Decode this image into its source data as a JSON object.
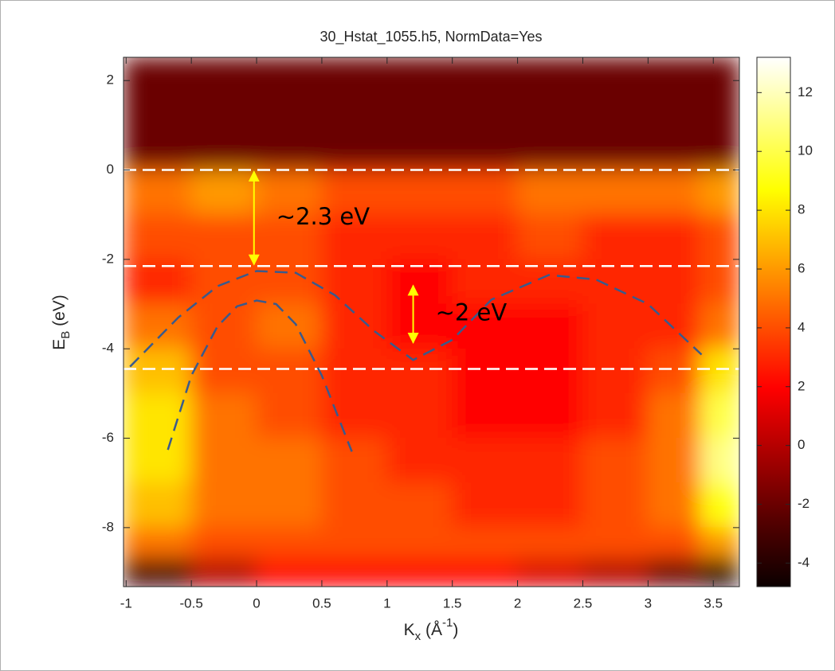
{
  "chart_data": {
    "type": "heatmap",
    "title": "30_Hstat_1055.h5, NormData=Yes",
    "xlabel": [
      "K",
      "x",
      " (Å",
      "-1",
      ")"
    ],
    "ylabel": [
      "E",
      "B",
      " (eV)"
    ],
    "xlim": [
      -1.02,
      3.7
    ],
    "ylim": [
      -9.32,
      2.52
    ],
    "xticks": [
      -1,
      -0.5,
      0,
      0.5,
      1,
      1.5,
      2,
      2.5,
      3,
      3.5
    ],
    "yticks": [
      2,
      0,
      -2,
      -4,
      -6,
      -8
    ],
    "xbins": [
      -1.02,
      -0.5,
      0,
      0.5,
      1,
      1.5,
      2,
      2.5,
      3,
      3.4,
      3.7
    ],
    "ybins": [
      2.52,
      1.26,
      0,
      -1,
      -2,
      -3,
      -4,
      -5,
      -6,
      -7,
      -8,
      -8.7,
      -9.32
    ],
    "z": [
      [
        -2,
        -2,
        -2,
        -2,
        -2,
        -2,
        -2,
        -2,
        -2,
        -2
      ],
      [
        -2,
        -2,
        -2,
        -2,
        -2,
        -2,
        -2,
        -2,
        -2,
        -2
      ],
      [
        5,
        6,
        5,
        4,
        4,
        4,
        5,
        5,
        5,
        6
      ],
      [
        4,
        4,
        4,
        3,
        3,
        3,
        4,
        3,
        3,
        4
      ],
      [
        3,
        4,
        4,
        3,
        2,
        3,
        3,
        3,
        3,
        4
      ],
      [
        5,
        4,
        5,
        3,
        2,
        2,
        2,
        3,
        3,
        5
      ],
      [
        7,
        4,
        4,
        3,
        3,
        2,
        2,
        3,
        4,
        8
      ],
      [
        8,
        5,
        4,
        3,
        3,
        2,
        2,
        3,
        5,
        10
      ],
      [
        8,
        5,
        5,
        4,
        3,
        3,
        3,
        4,
        5,
        11
      ],
      [
        7,
        5,
        5,
        4,
        4,
        3,
        3,
        4,
        5,
        9
      ],
      [
        5,
        4,
        4,
        4,
        4,
        4,
        4,
        4,
        4,
        6
      ],
      [
        -3,
        0,
        2,
        2,
        2,
        2,
        1,
        0,
        -2,
        -4
      ]
    ],
    "clim": [
      -4.8,
      13.2
    ],
    "cticks": [
      12,
      10,
      8,
      6,
      4,
      2,
      0,
      -2,
      -4
    ],
    "colormap": [
      "#0b0000",
      "#550000",
      "#aa0000",
      "#ff0000",
      "#ff5500",
      "#ffaa00",
      "#ffff00",
      "#ffff80",
      "#ffffff"
    ],
    "hlines": [
      0,
      -2.15,
      -4.45
    ],
    "hline_color": "#ffffff",
    "guides": [
      {
        "color": "#3a5a8c",
        "x": [
          -0.97,
          -0.6,
          -0.3,
          0,
          0.3,
          0.6,
          0.9,
          1.2,
          1.5,
          1.8,
          2.24,
          2.6,
          3.0,
          3.41
        ],
        "y": [
          -4.4,
          -3.3,
          -2.6,
          -2.26,
          -2.3,
          -2.8,
          -3.6,
          -4.25,
          -3.8,
          -2.9,
          -2.35,
          -2.45,
          -3.0,
          -4.13
        ]
      },
      {
        "color": "#3a5a8c",
        "x": [
          -0.68,
          -0.5,
          -0.3,
          -0.15,
          0,
          0.15,
          0.3,
          0.5,
          0.73
        ],
        "y": [
          -6.26,
          -4.6,
          -3.5,
          -3.05,
          -2.92,
          -3.0,
          -3.45,
          -4.6,
          -6.3
        ]
      }
    ],
    "annotations": [
      {
        "text": "~2.3 eV",
        "x": -0.02,
        "y1": 0,
        "y2": -2.15
      },
      {
        "text": "~2 eV",
        "x": 1.2,
        "y1": -2.55,
        "y2": -3.9
      }
    ],
    "arrow_color": "#ffff00"
  }
}
